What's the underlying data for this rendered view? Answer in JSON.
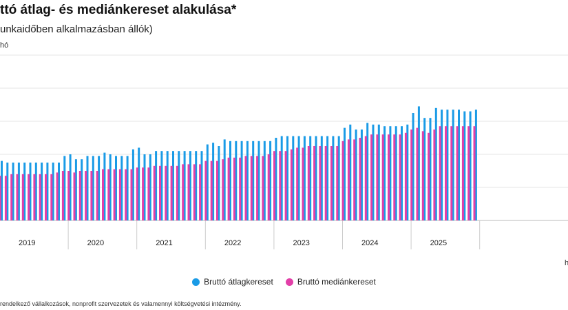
{
  "title": "ttó átlag- és mediánkereset alakulása*",
  "subtitle": "unkaidőben alkalmazásban állók)",
  "unit_label": "hó",
  "x_unit": "h",
  "footnote": "rendelkező vállalkozások, nonprofit szervezetek és valamennyi költségvetési intézmény.",
  "legend": [
    {
      "label": "Bruttó átlagkereset",
      "color": "#1a9be6"
    },
    {
      "label": "Bruttó mediánkereset",
      "color": "#e23fa8"
    }
  ],
  "chart_data": {
    "type": "bar",
    "x_axis_labels": [
      "2019",
      "2020",
      "2021",
      "2022",
      "2023",
      "2024",
      "2025"
    ],
    "ylim": [
      0,
      100
    ],
    "grid": true,
    "legend_position": "bottom",
    "note": "values in relative units read off the gridlines (unlabeled y-axis), 20 per gridline",
    "series": [
      {
        "name": "Bruttó átlagkereset",
        "color": "#1a9be6",
        "values": [
          36,
          35,
          35,
          35,
          35,
          35,
          35,
          35,
          35,
          35,
          35,
          39,
          40,
          37,
          37,
          39,
          39,
          39,
          41,
          40,
          39,
          39,
          39,
          43,
          44,
          40,
          40,
          42,
          42,
          42,
          42,
          42,
          42,
          42,
          42,
          42,
          46,
          47,
          45,
          49,
          48,
          48,
          48,
          48,
          48,
          48,
          48,
          48,
          50,
          51,
          51,
          51,
          51,
          51,
          51,
          51,
          51,
          51,
          51,
          51,
          56,
          58,
          55,
          55,
          59,
          58,
          58,
          57,
          57,
          57,
          57,
          58,
          65,
          69,
          62,
          62,
          68,
          67,
          67,
          67,
          67,
          66,
          66,
          67
        ]
      },
      {
        "name": "Bruttó mediánkereset",
        "color": "#e23fa8",
        "values": [
          27,
          27,
          28,
          28,
          28,
          28,
          28,
          28,
          28,
          28,
          29,
          30,
          30,
          29,
          30,
          30,
          30,
          30,
          31,
          31,
          31,
          31,
          31,
          31,
          32,
          32,
          32,
          33,
          33,
          33,
          33,
          33,
          34,
          34,
          34,
          34,
          36,
          36,
          36,
          37,
          38,
          38,
          38,
          39,
          39,
          39,
          39,
          40,
          42,
          42,
          42,
          43,
          44,
          44,
          45,
          45,
          45,
          45,
          45,
          45,
          48,
          49,
          49,
          50,
          51,
          52,
          52,
          52,
          52,
          52,
          52,
          53,
          55,
          56,
          54,
          53,
          55,
          57,
          57,
          57,
          57,
          57,
          57,
          57
        ]
      }
    ]
  }
}
